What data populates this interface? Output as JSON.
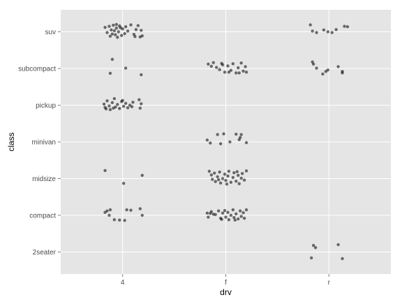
{
  "chart_data": {
    "type": "scatter",
    "xlabel": "drv",
    "ylabel": "class",
    "x_categories": [
      "4",
      "f",
      "r"
    ],
    "y_categories": [
      "2seater",
      "compact",
      "midsize",
      "minivan",
      "pickup",
      "subcompact",
      "suv"
    ],
    "jitter": "jittered points per category pair",
    "background": "#e5e5e5",
    "grid": true,
    "grid_color": "#ffffff",
    "point_color": "#000000",
    "point_opacity": 0.55,
    "points": [
      {
        "x": -0.17,
        "y": 6.12,
        "cat_x": "4",
        "cat_y": "suv"
      },
      {
        "x": -0.13,
        "y": 6.15,
        "cat_x": "4",
        "cat_y": "suv"
      },
      {
        "x": -0.11,
        "y": 6.05,
        "cat_x": "4",
        "cat_y": "suv"
      },
      {
        "x": -0.09,
        "y": 6.18,
        "cat_x": "4",
        "cat_y": "suv"
      },
      {
        "x": -0.07,
        "y": 5.92,
        "cat_x": "4",
        "cat_y": "suv"
      },
      {
        "x": -0.06,
        "y": 6.1,
        "cat_x": "4",
        "cat_y": "suv"
      },
      {
        "x": -0.04,
        "y": 6.0,
        "cat_x": "4",
        "cat_y": "suv"
      },
      {
        "x": -0.03,
        "y": 6.16,
        "cat_x": "4",
        "cat_y": "suv"
      },
      {
        "x": -0.01,
        "y": 5.9,
        "cat_x": "4",
        "cat_y": "suv"
      },
      {
        "x": 0.0,
        "y": 6.08,
        "cat_x": "4",
        "cat_y": "suv"
      },
      {
        "x": 0.02,
        "y": 5.95,
        "cat_x": "4",
        "cat_y": "suv"
      },
      {
        "x": 0.03,
        "y": 6.14,
        "cat_x": "4",
        "cat_y": "suv"
      },
      {
        "x": -0.15,
        "y": 5.98,
        "cat_x": "4",
        "cat_y": "suv"
      },
      {
        "x": -0.12,
        "y": 5.88,
        "cat_x": "4",
        "cat_y": "suv"
      },
      {
        "x": -0.05,
        "y": 5.85,
        "cat_x": "4",
        "cat_y": "suv"
      },
      {
        "x": 0.05,
        "y": 6.02,
        "cat_x": "4",
        "cat_y": "suv"
      },
      {
        "x": 0.08,
        "y": 6.19,
        "cat_x": "4",
        "cat_y": "suv"
      },
      {
        "x": 0.11,
        "y": 5.93,
        "cat_x": "4",
        "cat_y": "suv"
      },
      {
        "x": 0.13,
        "y": 6.06,
        "cat_x": "4",
        "cat_y": "suv"
      },
      {
        "x": 0.15,
        "y": 6.17,
        "cat_x": "4",
        "cat_y": "suv"
      },
      {
        "x": 0.17,
        "y": 5.86,
        "cat_x": "4",
        "cat_y": "suv"
      },
      {
        "x": 0.18,
        "y": 6.04,
        "cat_x": "4",
        "cat_y": "suv"
      },
      {
        "x": 0.19,
        "y": 5.89,
        "cat_x": "4",
        "cat_y": "suv"
      },
      {
        "x": 0.12,
        "y": 5.87,
        "cat_x": "4",
        "cat_y": "suv"
      },
      {
        "x": -0.02,
        "y": 6.11,
        "cat_x": "4",
        "cat_y": "suv"
      },
      {
        "x": -0.08,
        "y": 6.03,
        "cat_x": "4",
        "cat_y": "suv"
      },
      {
        "x": -0.1,
        "y": 5.94,
        "cat_x": "4",
        "cat_y": "suv"
      },
      {
        "x": -0.06,
        "y": 6.2,
        "cat_x": "4",
        "cat_y": "suv"
      },
      {
        "x": 1.82,
        "y": 6.19,
        "cat_x": "r",
        "cat_y": "suv"
      },
      {
        "x": 1.84,
        "y": 6.02,
        "cat_x": "r",
        "cat_y": "suv"
      },
      {
        "x": 1.88,
        "y": 5.98,
        "cat_x": "r",
        "cat_y": "suv"
      },
      {
        "x": 1.95,
        "y": 6.05,
        "cat_x": "r",
        "cat_y": "suv"
      },
      {
        "x": 1.99,
        "y": 6.0,
        "cat_x": "r",
        "cat_y": "suv"
      },
      {
        "x": 2.03,
        "y": 5.98,
        "cat_x": "r",
        "cat_y": "suv"
      },
      {
        "x": 2.07,
        "y": 6.06,
        "cat_x": "r",
        "cat_y": "suv"
      },
      {
        "x": 2.15,
        "y": 6.15,
        "cat_x": "r",
        "cat_y": "suv"
      },
      {
        "x": 2.18,
        "y": 6.14,
        "cat_x": "r",
        "cat_y": "suv"
      },
      {
        "x": -0.1,
        "y": 5.25,
        "cat_x": "4",
        "cat_y": "subcompact"
      },
      {
        "x": 0.03,
        "y": 5.01,
        "cat_x": "4",
        "cat_y": "subcompact"
      },
      {
        "x": -0.12,
        "y": 4.87,
        "cat_x": "4",
        "cat_y": "subcompact"
      },
      {
        "x": 0.18,
        "y": 4.83,
        "cat_x": "4",
        "cat_y": "subcompact"
      },
      {
        "x": 0.83,
        "y": 5.12,
        "cat_x": "f",
        "cat_y": "subcompact"
      },
      {
        "x": 0.86,
        "y": 5.06,
        "cat_x": "f",
        "cat_y": "subcompact"
      },
      {
        "x": 0.88,
        "y": 5.16,
        "cat_x": "f",
        "cat_y": "subcompact"
      },
      {
        "x": 0.91,
        "y": 5.03,
        "cat_x": "f",
        "cat_y": "subcompact"
      },
      {
        "x": 0.94,
        "y": 4.97,
        "cat_x": "f",
        "cat_y": "subcompact"
      },
      {
        "x": 0.97,
        "y": 5.1,
        "cat_x": "f",
        "cat_y": "subcompact"
      },
      {
        "x": 0.99,
        "y": 4.9,
        "cat_x": "f",
        "cat_y": "subcompact"
      },
      {
        "x": 1.02,
        "y": 5.07,
        "cat_x": "f",
        "cat_y": "subcompact"
      },
      {
        "x": 1.05,
        "y": 4.95,
        "cat_x": "f",
        "cat_y": "subcompact"
      },
      {
        "x": 1.07,
        "y": 5.13,
        "cat_x": "f",
        "cat_y": "subcompact"
      },
      {
        "x": 1.1,
        "y": 4.88,
        "cat_x": "f",
        "cat_y": "subcompact"
      },
      {
        "x": 1.12,
        "y": 5.02,
        "cat_x": "f",
        "cat_y": "subcompact"
      },
      {
        "x": 1.15,
        "y": 5.15,
        "cat_x": "f",
        "cat_y": "subcompact"
      },
      {
        "x": 1.17,
        "y": 4.93,
        "cat_x": "f",
        "cat_y": "subcompact"
      },
      {
        "x": 1.19,
        "y": 5.05,
        "cat_x": "f",
        "cat_y": "subcompact"
      },
      {
        "x": 1.2,
        "y": 4.9,
        "cat_x": "f",
        "cat_y": "subcompact"
      },
      {
        "x": 1.13,
        "y": 4.88,
        "cat_x": "f",
        "cat_y": "subcompact"
      },
      {
        "x": 1.03,
        "y": 4.9,
        "cat_x": "f",
        "cat_y": "subcompact"
      },
      {
        "x": 0.96,
        "y": 5.14,
        "cat_x": "f",
        "cat_y": "subcompact"
      },
      {
        "x": 1.84,
        "y": 5.18,
        "cat_x": "r",
        "cat_y": "subcompact"
      },
      {
        "x": 1.85,
        "y": 5.12,
        "cat_x": "r",
        "cat_y": "subcompact"
      },
      {
        "x": 1.88,
        "y": 5.01,
        "cat_x": "r",
        "cat_y": "subcompact"
      },
      {
        "x": 1.94,
        "y": 4.85,
        "cat_x": "r",
        "cat_y": "subcompact"
      },
      {
        "x": 1.97,
        "y": 4.92,
        "cat_x": "r",
        "cat_y": "subcompact"
      },
      {
        "x": 1.99,
        "y": 4.96,
        "cat_x": "r",
        "cat_y": "subcompact"
      },
      {
        "x": 2.09,
        "y": 5.05,
        "cat_x": "r",
        "cat_y": "subcompact"
      },
      {
        "x": 2.13,
        "y": 4.92,
        "cat_x": "r",
        "cat_y": "subcompact"
      },
      {
        "x": 2.13,
        "y": 4.88,
        "cat_x": "r",
        "cat_y": "subcompact"
      },
      {
        "x": -0.18,
        "y": 4.03,
        "cat_x": "4",
        "cat_y": "pickup"
      },
      {
        "x": -0.17,
        "y": 3.94,
        "cat_x": "4",
        "cat_y": "pickup"
      },
      {
        "x": -0.15,
        "y": 4.12,
        "cat_x": "4",
        "cat_y": "pickup"
      },
      {
        "x": -0.13,
        "y": 3.98,
        "cat_x": "4",
        "cat_y": "pickup"
      },
      {
        "x": -0.12,
        "y": 3.88,
        "cat_x": "4",
        "cat_y": "pickup"
      },
      {
        "x": -0.1,
        "y": 4.07,
        "cat_x": "4",
        "cat_y": "pickup"
      },
      {
        "x": -0.08,
        "y": 4.18,
        "cat_x": "4",
        "cat_y": "pickup"
      },
      {
        "x": -0.07,
        "y": 3.95,
        "cat_x": "4",
        "cat_y": "pickup"
      },
      {
        "x": -0.05,
        "y": 4.02,
        "cat_x": "4",
        "cat_y": "pickup"
      },
      {
        "x": -0.03,
        "y": 3.91,
        "cat_x": "4",
        "cat_y": "pickup"
      },
      {
        "x": -0.01,
        "y": 4.1,
        "cat_x": "4",
        "cat_y": "pickup"
      },
      {
        "x": 0.01,
        "y": 3.97,
        "cat_x": "4",
        "cat_y": "pickup"
      },
      {
        "x": 0.03,
        "y": 4.05,
        "cat_x": "4",
        "cat_y": "pickup"
      },
      {
        "x": 0.05,
        "y": 3.93,
        "cat_x": "4",
        "cat_y": "pickup"
      },
      {
        "x": 0.07,
        "y": 4.0,
        "cat_x": "4",
        "cat_y": "pickup"
      },
      {
        "x": 0.09,
        "y": 3.96,
        "cat_x": "4",
        "cat_y": "pickup"
      },
      {
        "x": 0.1,
        "y": 4.08,
        "cat_x": "4",
        "cat_y": "pickup"
      },
      {
        "x": 0.16,
        "y": 4.15,
        "cat_x": "4",
        "cat_y": "pickup"
      },
      {
        "x": 0.17,
        "y": 3.92,
        "cat_x": "4",
        "cat_y": "pickup"
      },
      {
        "x": 0.18,
        "y": 4.04,
        "cat_x": "4",
        "cat_y": "pickup"
      },
      {
        "x": -0.16,
        "y": 3.9,
        "cat_x": "4",
        "cat_y": "pickup"
      },
      {
        "x": -0.09,
        "y": 3.92,
        "cat_x": "4",
        "cat_y": "pickup"
      },
      {
        "x": 0.0,
        "y": 4.13,
        "cat_x": "4",
        "cat_y": "pickup"
      },
      {
        "x": 0.82,
        "y": 3.05,
        "cat_x": "f",
        "cat_y": "minivan"
      },
      {
        "x": 0.85,
        "y": 2.97,
        "cat_x": "f",
        "cat_y": "minivan"
      },
      {
        "x": 0.92,
        "y": 3.2,
        "cat_x": "f",
        "cat_y": "minivan"
      },
      {
        "x": 0.95,
        "y": 2.95,
        "cat_x": "f",
        "cat_y": "minivan"
      },
      {
        "x": 0.98,
        "y": 3.22,
        "cat_x": "f",
        "cat_y": "minivan"
      },
      {
        "x": 1.1,
        "y": 3.21,
        "cat_x": "f",
        "cat_y": "minivan"
      },
      {
        "x": 1.13,
        "y": 3.06,
        "cat_x": "f",
        "cat_y": "minivan"
      },
      {
        "x": 1.15,
        "y": 3.2,
        "cat_x": "f",
        "cat_y": "minivan"
      },
      {
        "x": 1.14,
        "y": 3.12,
        "cat_x": "f",
        "cat_y": "minivan"
      },
      {
        "x": 1.2,
        "y": 2.98,
        "cat_x": "f",
        "cat_y": "minivan"
      },
      {
        "x": 1.04,
        "y": 3.0,
        "cat_x": "f",
        "cat_y": "minivan"
      },
      {
        "x": -0.17,
        "y": 2.22,
        "cat_x": "4",
        "cat_y": "midsize"
      },
      {
        "x": 0.01,
        "y": 1.87,
        "cat_x": "4",
        "cat_y": "midsize"
      },
      {
        "x": 0.19,
        "y": 2.09,
        "cat_x": "4",
        "cat_y": "midsize"
      },
      {
        "x": 0.84,
        "y": 2.2,
        "cat_x": "f",
        "cat_y": "midsize"
      },
      {
        "x": 0.86,
        "y": 2.1,
        "cat_x": "f",
        "cat_y": "midsize"
      },
      {
        "x": 0.87,
        "y": 1.98,
        "cat_x": "f",
        "cat_y": "midsize"
      },
      {
        "x": 0.89,
        "y": 2.15,
        "cat_x": "f",
        "cat_y": "midsize"
      },
      {
        "x": 0.9,
        "y": 1.92,
        "cat_x": "f",
        "cat_y": "midsize"
      },
      {
        "x": 0.92,
        "y": 2.05,
        "cat_x": "f",
        "cat_y": "midsize"
      },
      {
        "x": 0.94,
        "y": 2.18,
        "cat_x": "f",
        "cat_y": "midsize"
      },
      {
        "x": 0.95,
        "y": 1.88,
        "cat_x": "f",
        "cat_y": "midsize"
      },
      {
        "x": 0.97,
        "y": 2.0,
        "cat_x": "f",
        "cat_y": "midsize"
      },
      {
        "x": 0.99,
        "y": 2.12,
        "cat_x": "f",
        "cat_y": "midsize"
      },
      {
        "x": 1.0,
        "y": 1.95,
        "cat_x": "f",
        "cat_y": "midsize"
      },
      {
        "x": 1.02,
        "y": 2.07,
        "cat_x": "f",
        "cat_y": "midsize"
      },
      {
        "x": 1.03,
        "y": 2.2,
        "cat_x": "f",
        "cat_y": "midsize"
      },
      {
        "x": 1.05,
        "y": 1.9,
        "cat_x": "f",
        "cat_y": "midsize"
      },
      {
        "x": 1.07,
        "y": 2.03,
        "cat_x": "f",
        "cat_y": "midsize"
      },
      {
        "x": 1.08,
        "y": 2.16,
        "cat_x": "f",
        "cat_y": "midsize"
      },
      {
        "x": 1.1,
        "y": 1.93,
        "cat_x": "f",
        "cat_y": "midsize"
      },
      {
        "x": 1.12,
        "y": 2.09,
        "cat_x": "f",
        "cat_y": "midsize"
      },
      {
        "x": 1.13,
        "y": 1.86,
        "cat_x": "f",
        "cat_y": "midsize"
      },
      {
        "x": 1.15,
        "y": 2.01,
        "cat_x": "f",
        "cat_y": "midsize"
      },
      {
        "x": 1.16,
        "y": 2.14,
        "cat_x": "f",
        "cat_y": "midsize"
      },
      {
        "x": 1.18,
        "y": 1.96,
        "cat_x": "f",
        "cat_y": "midsize"
      },
      {
        "x": 1.2,
        "y": 2.21,
        "cat_x": "f",
        "cat_y": "midsize"
      },
      {
        "x": 1.01,
        "y": 1.85,
        "cat_x": "f",
        "cat_y": "midsize"
      },
      {
        "x": 0.93,
        "y": 1.97,
        "cat_x": "f",
        "cat_y": "midsize"
      },
      {
        "x": 1.11,
        "y": 2.19,
        "cat_x": "f",
        "cat_y": "midsize"
      },
      {
        "x": -0.17,
        "y": 1.08,
        "cat_x": "4",
        "cat_y": "compact"
      },
      {
        "x": -0.15,
        "y": 1.12,
        "cat_x": "4",
        "cat_y": "compact"
      },
      {
        "x": -0.13,
        "y": 1.0,
        "cat_x": "4",
        "cat_y": "compact"
      },
      {
        "x": -0.12,
        "y": 1.15,
        "cat_x": "4",
        "cat_y": "compact"
      },
      {
        "x": -0.08,
        "y": 0.88,
        "cat_x": "4",
        "cat_y": "compact"
      },
      {
        "x": -0.03,
        "y": 0.87,
        "cat_x": "4",
        "cat_y": "compact"
      },
      {
        "x": 0.02,
        "y": 0.86,
        "cat_x": "4",
        "cat_y": "compact"
      },
      {
        "x": 0.04,
        "y": 1.15,
        "cat_x": "4",
        "cat_y": "compact"
      },
      {
        "x": 0.08,
        "y": 1.14,
        "cat_x": "4",
        "cat_y": "compact"
      },
      {
        "x": 0.17,
        "y": 1.18,
        "cat_x": "4",
        "cat_y": "compact"
      },
      {
        "x": 0.19,
        "y": 1.0,
        "cat_x": "4",
        "cat_y": "compact"
      },
      {
        "x": 0.82,
        "y": 1.06,
        "cat_x": "f",
        "cat_y": "compact"
      },
      {
        "x": 0.83,
        "y": 0.95,
        "cat_x": "f",
        "cat_y": "compact"
      },
      {
        "x": 0.85,
        "y": 1.05,
        "cat_x": "f",
        "cat_y": "compact"
      },
      {
        "x": 0.86,
        "y": 1.1,
        "cat_x": "f",
        "cat_y": "compact"
      },
      {
        "x": 0.88,
        "y": 1.03,
        "cat_x": "f",
        "cat_y": "compact"
      },
      {
        "x": 0.9,
        "y": 1.02,
        "cat_x": "f",
        "cat_y": "compact"
      },
      {
        "x": 0.93,
        "y": 1.12,
        "cat_x": "f",
        "cat_y": "compact"
      },
      {
        "x": 0.95,
        "y": 0.92,
        "cat_x": "f",
        "cat_y": "compact"
      },
      {
        "x": 0.97,
        "y": 1.06,
        "cat_x": "f",
        "cat_y": "compact"
      },
      {
        "x": 0.99,
        "y": 1.13,
        "cat_x": "f",
        "cat_y": "compact"
      },
      {
        "x": 1.0,
        "y": 0.95,
        "cat_x": "f",
        "cat_y": "compact"
      },
      {
        "x": 1.02,
        "y": 1.08,
        "cat_x": "f",
        "cat_y": "compact"
      },
      {
        "x": 1.03,
        "y": 0.88,
        "cat_x": "f",
        "cat_y": "compact"
      },
      {
        "x": 1.05,
        "y": 1.0,
        "cat_x": "f",
        "cat_y": "compact"
      },
      {
        "x": 1.07,
        "y": 1.15,
        "cat_x": "f",
        "cat_y": "compact"
      },
      {
        "x": 1.08,
        "y": 0.94,
        "cat_x": "f",
        "cat_y": "compact"
      },
      {
        "x": 1.1,
        "y": 1.04,
        "cat_x": "f",
        "cat_y": "compact"
      },
      {
        "x": 1.12,
        "y": 0.9,
        "cat_x": "f",
        "cat_y": "compact"
      },
      {
        "x": 1.14,
        "y": 1.12,
        "cat_x": "f",
        "cat_y": "compact"
      },
      {
        "x": 1.15,
        "y": 0.97,
        "cat_x": "f",
        "cat_y": "compact"
      },
      {
        "x": 1.17,
        "y": 1.07,
        "cat_x": "f",
        "cat_y": "compact"
      },
      {
        "x": 1.18,
        "y": 0.92,
        "cat_x": "f",
        "cat_y": "compact"
      },
      {
        "x": 1.2,
        "y": 1.15,
        "cat_x": "f",
        "cat_y": "compact"
      },
      {
        "x": 1.09,
        "y": 0.87,
        "cat_x": "f",
        "cat_y": "compact"
      },
      {
        "x": 0.96,
        "y": 0.89,
        "cat_x": "f",
        "cat_y": "compact"
      },
      {
        "x": 1.85,
        "y": 0.18,
        "cat_x": "r",
        "cat_y": "2seater"
      },
      {
        "x": 1.87,
        "y": 0.12,
        "cat_x": "r",
        "cat_y": "2seater"
      },
      {
        "x": 1.83,
        "y": -0.16,
        "cat_x": "r",
        "cat_y": "2seater"
      },
      {
        "x": 2.09,
        "y": 0.2,
        "cat_x": "r",
        "cat_y": "2seater"
      },
      {
        "x": 2.13,
        "y": -0.18,
        "cat_x": "r",
        "cat_y": "2seater"
      }
    ]
  }
}
